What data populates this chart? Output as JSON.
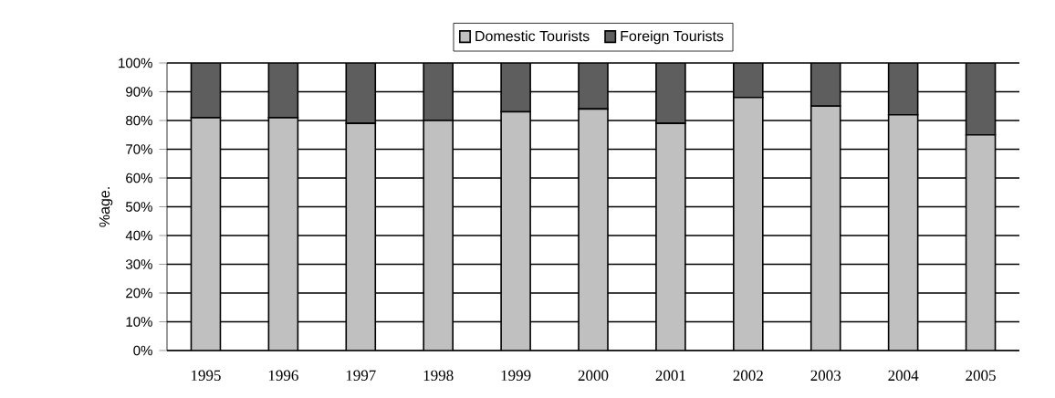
{
  "chart_data": {
    "type": "bar",
    "stacked": true,
    "ylabel": "%age.",
    "categories": [
      "1995",
      "1996",
      "1997",
      "1998",
      "1999",
      "2000",
      "2001",
      "2002",
      "2003",
      "2004",
      "2005"
    ],
    "series": [
      {
        "name": "Domestic Tourists",
        "color": "#c0c0c0",
        "values": [
          81,
          81,
          79,
          80,
          83,
          84,
          79,
          88,
          85,
          82,
          75
        ]
      },
      {
        "name": "Foreign Tourists",
        "color": "#5e5e5e",
        "values": [
          19,
          19,
          21,
          20,
          17,
          16,
          21,
          12,
          15,
          18,
          25
        ]
      }
    ],
    "ylim": [
      0,
      100
    ],
    "yticks": [
      {
        "value": 0,
        "label": "0%"
      },
      {
        "value": 10,
        "label": "10%"
      },
      {
        "value": 20,
        "label": "20%"
      },
      {
        "value": 30,
        "label": "30%"
      },
      {
        "value": 40,
        "label": "40%"
      },
      {
        "value": 50,
        "label": "50%"
      },
      {
        "value": 60,
        "label": "60%"
      },
      {
        "value": 70,
        "label": "70%"
      },
      {
        "value": 80,
        "label": "80%"
      },
      {
        "value": 90,
        "label": "90%"
      },
      {
        "value": 100,
        "label": "100%"
      }
    ],
    "grid": "y",
    "legend": "top"
  }
}
